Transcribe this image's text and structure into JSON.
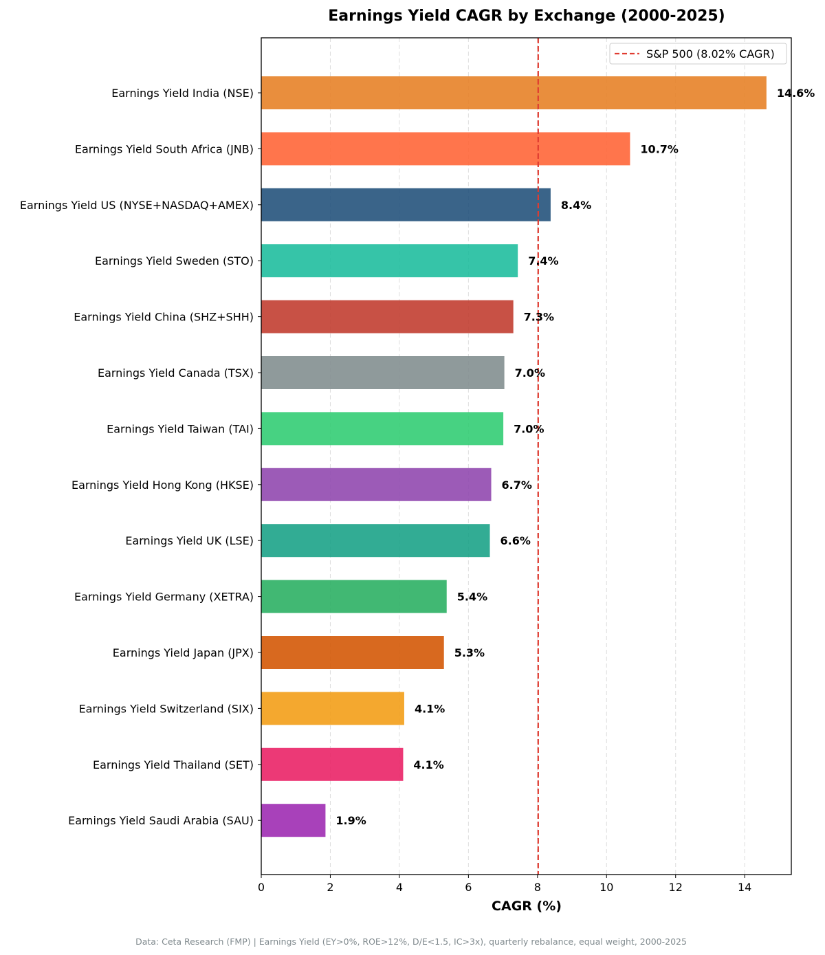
{
  "chart_data": {
    "type": "bar",
    "orientation": "horizontal",
    "title": "Earnings Yield CAGR by Exchange (2000-2025)",
    "xlabel": "CAGR (%)",
    "ylabel": "",
    "xlim": [
      0,
      15.35
    ],
    "xticks": [
      0,
      2,
      4,
      6,
      8,
      10,
      12,
      14
    ],
    "xtick_labels": [
      "0",
      "2",
      "4",
      "6",
      "8",
      "10",
      "12",
      "14"
    ],
    "grid": "vertical dashed",
    "categories": [
      "Earnings Yield India (NSE)",
      "Earnings Yield South Africa (JNB)",
      "Earnings Yield US (NYSE+NASDAQ+AMEX)",
      "Earnings Yield Sweden (STO)",
      "Earnings Yield China (SHZ+SHH)",
      "Earnings Yield Canada (TSX)",
      "Earnings Yield Taiwan (TAI)",
      "Earnings Yield Hong Kong (HKSE)",
      "Earnings Yield UK (LSE)",
      "Earnings Yield Germany (XETRA)",
      "Earnings Yield Japan (JPX)",
      "Earnings Yield Switzerland (SIX)",
      "Earnings Yield Thailand (SET)",
      "Earnings Yield Saudi Arabia (SAU)"
    ],
    "values": [
      14.63,
      10.68,
      8.38,
      7.43,
      7.3,
      7.04,
      7.01,
      6.66,
      6.62,
      5.37,
      5.29,
      4.14,
      4.11,
      1.86
    ],
    "value_labels": [
      "14.6%",
      "10.7%",
      "8.4%",
      "7.4%",
      "7.3%",
      "7.0%",
      "7.0%",
      "6.7%",
      "6.6%",
      "5.4%",
      "5.3%",
      "4.1%",
      "4.1%",
      "1.9%"
    ],
    "colors": [
      "#e67e22",
      "#ff6233",
      "#1f4e79",
      "#1abc9c",
      "#c0392b",
      "#7f8c8d",
      "#2ecc71",
      "#8e44ad",
      "#16a085",
      "#27ae60",
      "#d35400",
      "#f39c12",
      "#e91e63",
      "#9c27b0"
    ],
    "reference_line": {
      "value": 8.02,
      "label": "S&P 500 (8.02% CAGR)",
      "color": "#e03c31",
      "style": "dashed"
    },
    "legend_position": "top-right"
  },
  "footnote": "Data: Ceta Research (FMP) | Earnings Yield (EY>0%, ROE>12%, D/E<1.5, IC>3x), quarterly rebalance, equal weight, 2000-2025"
}
